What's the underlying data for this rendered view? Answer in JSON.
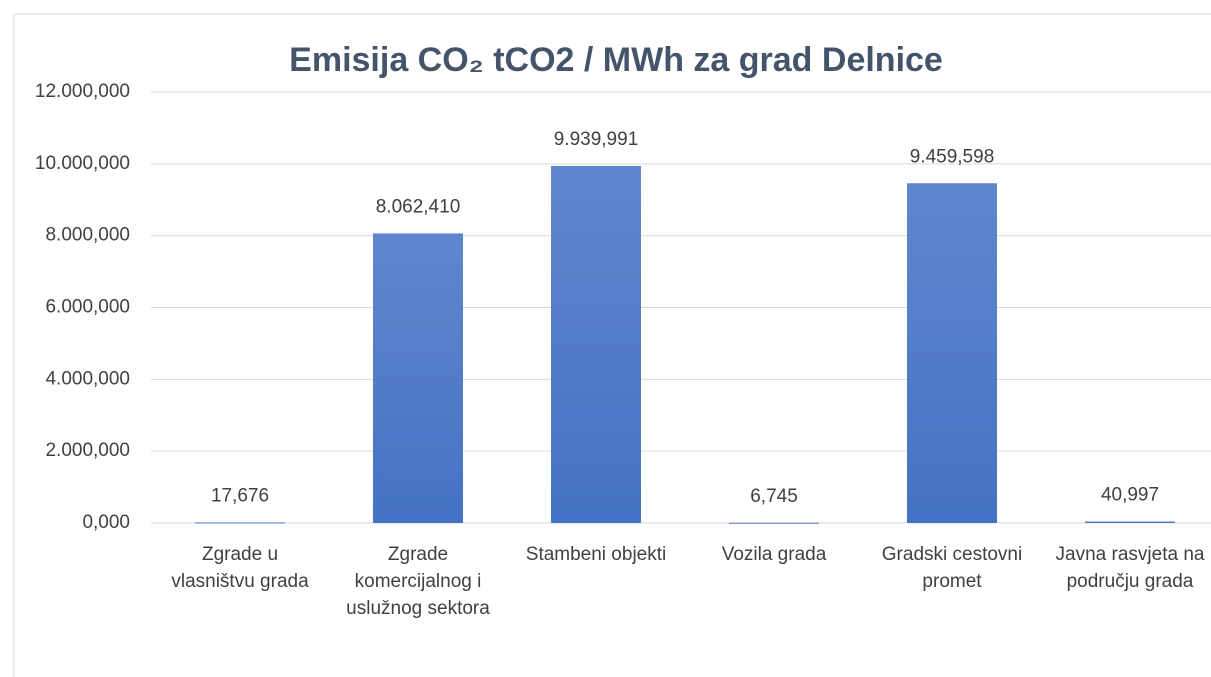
{
  "chart_data": {
    "type": "bar",
    "title": "Emisija CO₂  tCO2 / MWh za grad Delnice",
    "categories": [
      [
        "Zgrade u",
        "vlasništvu grada"
      ],
      [
        "Zgrade",
        "komercijalnog i",
        "uslužnog sektora"
      ],
      [
        "Stambeni objekti"
      ],
      [
        "Vozila grada"
      ],
      [
        "Gradski cestovni",
        "promet"
      ],
      [
        "Javna rasvjeta na",
        "području grada"
      ]
    ],
    "values": [
      17.676,
      8062.41,
      9939.991,
      6.745,
      9459.598,
      40.997
    ],
    "value_labels": [
      "17,676",
      "8.062,410",
      "9.939,991",
      "6,745",
      "9.459,598",
      "40,997"
    ],
    "color": "#4472c4",
    "ylim": [
      0,
      12000
    ],
    "yticks": [
      {
        "value": 0,
        "label": "0,000"
      },
      {
        "value": 2000,
        "label": "2.000,000"
      },
      {
        "value": 4000,
        "label": "4.000,000"
      },
      {
        "value": 6000,
        "label": "6.000,000"
      },
      {
        "value": 8000,
        "label": "8.000,000"
      },
      {
        "value": 10000,
        "label": "10.000,000"
      },
      {
        "value": 12000,
        "label": "12.000,000"
      }
    ],
    "grid": true
  }
}
